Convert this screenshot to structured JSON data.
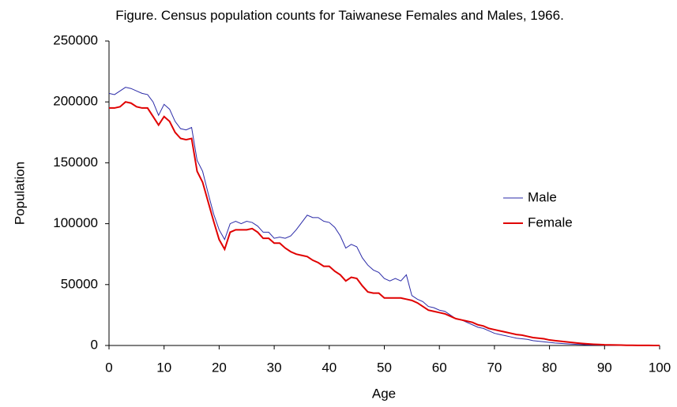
{
  "chart_data": {
    "type": "line",
    "title": "Figure. Census population counts for Taiwanese Females and Males, 1966.",
    "xlabel": "Age",
    "ylabel": "Population",
    "x": [
      0,
      1,
      2,
      3,
      4,
      5,
      6,
      7,
      8,
      9,
      10,
      11,
      12,
      13,
      14,
      15,
      16,
      17,
      18,
      19,
      20,
      21,
      22,
      23,
      24,
      25,
      26,
      27,
      28,
      29,
      30,
      31,
      32,
      33,
      34,
      35,
      36,
      37,
      38,
      39,
      40,
      41,
      42,
      43,
      44,
      45,
      46,
      47,
      48,
      49,
      50,
      51,
      52,
      53,
      54,
      55,
      56,
      57,
      58,
      59,
      60,
      61,
      62,
      63,
      64,
      65,
      66,
      67,
      68,
      69,
      70,
      71,
      72,
      73,
      74,
      75,
      76,
      77,
      78,
      79,
      80,
      81,
      82,
      83,
      84,
      85,
      86,
      87,
      88,
      89,
      90,
      91,
      92,
      93,
      94,
      95,
      96,
      97,
      98,
      99,
      100
    ],
    "series": [
      {
        "name": "Male",
        "color": "#2b2ba8",
        "width": 1,
        "values": [
          207000,
          206000,
          209000,
          212000,
          211000,
          209000,
          207000,
          206000,
          200000,
          189000,
          198000,
          194000,
          184000,
          178000,
          177000,
          179000,
          152000,
          143000,
          125000,
          108000,
          95000,
          87000,
          100000,
          102000,
          100000,
          102000,
          101000,
          98000,
          93000,
          93000,
          88000,
          89000,
          88000,
          90000,
          95000,
          101000,
          107000,
          105000,
          105000,
          102000,
          101000,
          97000,
          90000,
          80000,
          83000,
          81000,
          72000,
          66000,
          62000,
          60000,
          55000,
          53000,
          55000,
          53000,
          58000,
          41000,
          38000,
          36000,
          32000,
          31000,
          29000,
          28000,
          25000,
          22000,
          21000,
          19000,
          17000,
          15000,
          14000,
          12000,
          10000,
          9000,
          8000,
          7000,
          6000,
          5500,
          5000,
          4000,
          3500,
          3000,
          2500,
          2000,
          1700,
          1400,
          1100,
          900,
          700,
          500,
          400,
          300,
          250,
          200,
          150,
          100,
          80,
          60,
          40,
          30,
          20,
          10,
          10
        ]
      },
      {
        "name": "Female",
        "color": "#e00000",
        "width": 2,
        "values": [
          195000,
          195000,
          196000,
          200000,
          199000,
          196000,
          195000,
          195000,
          188000,
          181000,
          188000,
          184000,
          175000,
          170000,
          169000,
          170000,
          143000,
          134000,
          118000,
          102000,
          87000,
          79000,
          93000,
          95000,
          95000,
          95000,
          96000,
          93000,
          88000,
          88000,
          84000,
          84000,
          80000,
          77000,
          75000,
          74000,
          73000,
          70000,
          68000,
          65000,
          65000,
          61000,
          58000,
          53000,
          56000,
          55000,
          49000,
          44000,
          43000,
          43000,
          39000,
          39000,
          39000,
          39000,
          38000,
          37000,
          35000,
          32000,
          29000,
          28000,
          27000,
          26000,
          24000,
          22000,
          21000,
          20000,
          19000,
          17000,
          16000,
          14000,
          13000,
          12000,
          11000,
          10000,
          9000,
          8500,
          7500,
          6500,
          6000,
          5500,
          4500,
          4000,
          3500,
          3000,
          2500,
          2000,
          1600,
          1300,
          1000,
          800,
          600,
          500,
          400,
          300,
          200,
          150,
          100,
          80,
          50,
          30,
          20
        ]
      }
    ],
    "xlim": [
      0,
      100
    ],
    "xticks": [
      0,
      10,
      20,
      30,
      40,
      50,
      60,
      70,
      80,
      90,
      100
    ],
    "ylim": [
      0,
      250000
    ],
    "yticks": [
      0,
      50000,
      100000,
      150000,
      200000,
      250000
    ],
    "grid": false
  }
}
